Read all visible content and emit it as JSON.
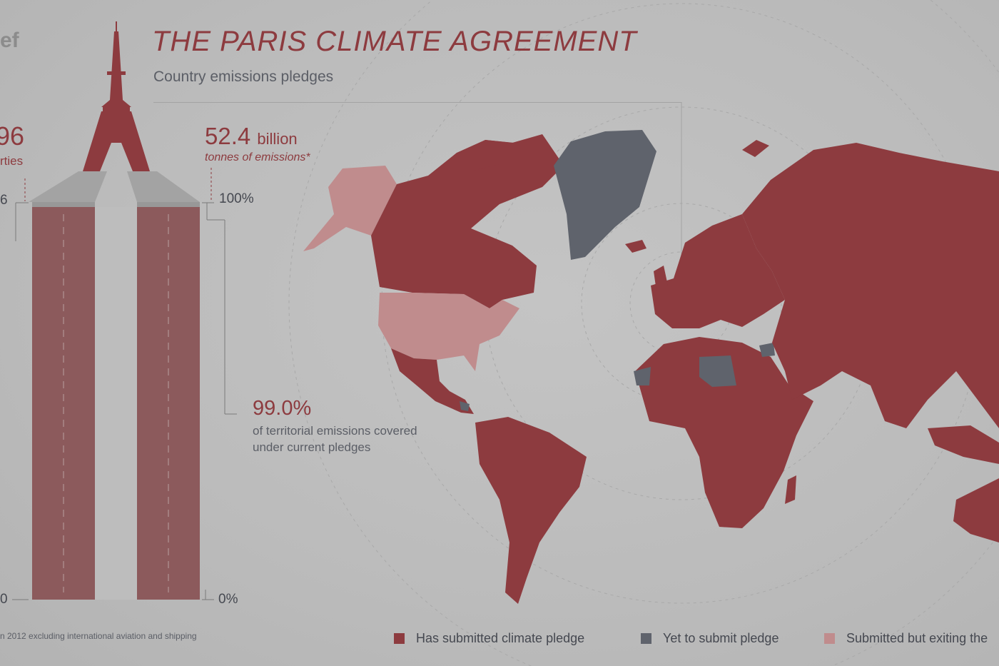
{
  "header": {
    "logo_text": "ef",
    "title": "THE PARIS CLIMATE AGREEMENT",
    "subtitle": "Country emissions pledges"
  },
  "stats": {
    "parties_value": "96",
    "parties_label": "rties",
    "emissions_value": "52.4",
    "emissions_unit": "billion",
    "emissions_label": "tonnes of emissions*",
    "coverage_value": "99.0%",
    "coverage_label_line1": "of territorial emissions covered",
    "coverage_label_line2": "under current pledges"
  },
  "axis": {
    "left_top": "6",
    "left_bottom": "0",
    "right_top": "100%",
    "right_bottom": "0%"
  },
  "footnote": "n 2012 excluding international aviation and shipping",
  "legend": [
    {
      "label": "Has submitted climate pledge",
      "color": "#8d3b3f"
    },
    {
      "label": "Yet to submit pledge",
      "color": "#5f636c"
    },
    {
      "label": "Submitted but exiting the",
      "color": "#c08c8d"
    }
  ],
  "colors": {
    "pledged": "#8d3b3f",
    "not_submitted": "#5f636c",
    "exiting": "#c08c8d",
    "bar": "#8c5a5c"
  },
  "chart_data": {
    "type": "bar",
    "categories": [
      "Parties",
      "Emissions"
    ],
    "values": [
      100,
      100
    ],
    "ylim": [
      0,
      100
    ],
    "annotations": [
      "99.0%",
      "52.4 billion tonnes of emissions*"
    ]
  }
}
